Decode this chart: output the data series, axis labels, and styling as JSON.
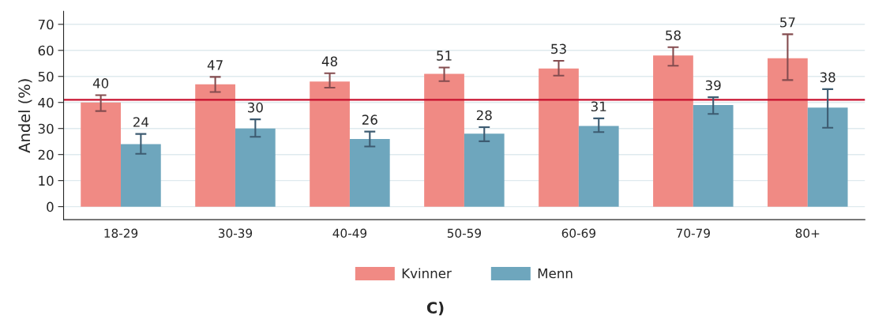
{
  "chart_data": {
    "type": "bar",
    "title": "C)",
    "ylabel": "Andel (%)",
    "categories": [
      "18-29",
      "30-39",
      "40-49",
      "50-59",
      "60-69",
      "70-79",
      "80+"
    ],
    "series": [
      {
        "name": "Kvinner",
        "color": "#f08a84",
        "values": [
          40,
          47,
          48,
          51,
          53,
          58,
          57
        ],
        "errors": [
          [
            36.7,
            42.8
          ],
          [
            44.0,
            49.8
          ],
          [
            45.7,
            51.2
          ],
          [
            48.2,
            53.4
          ],
          [
            50.3,
            56.0
          ],
          [
            54.1,
            61.2
          ],
          [
            48.6,
            66.2
          ]
        ]
      },
      {
        "name": "Menn",
        "color": "#6ea6bd",
        "values": [
          24,
          30,
          26,
          28,
          31,
          39,
          38
        ],
        "errors": [
          [
            20.3,
            27.9
          ],
          [
            26.8,
            33.5
          ],
          [
            23.1,
            28.8
          ],
          [
            25.1,
            30.5
          ],
          [
            28.6,
            33.9
          ],
          [
            35.6,
            42.0
          ],
          [
            30.3,
            45.1
          ]
        ]
      }
    ],
    "ref_lines": [
      {
        "axis": "y",
        "value": 41,
        "color": "#c8102e"
      }
    ],
    "ylim": [
      -5,
      75
    ],
    "yticks": [
      0,
      10,
      20,
      30,
      40,
      50,
      60,
      70
    ],
    "data_labels": true,
    "grid": "y",
    "legend": "bottom"
  }
}
